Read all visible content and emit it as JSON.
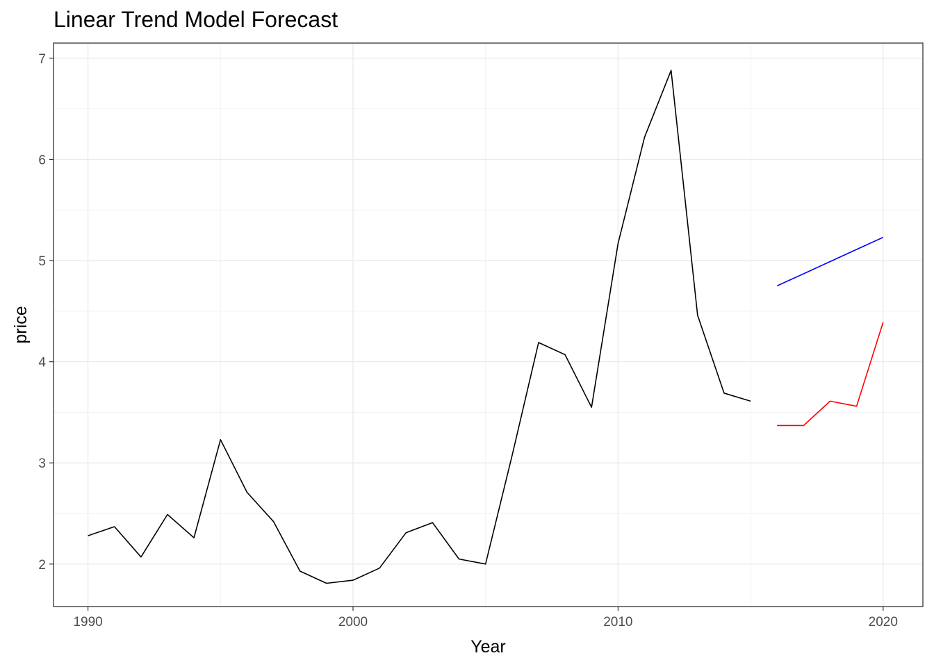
{
  "chart_data": {
    "type": "line",
    "title": "Linear Trend Model Forecast",
    "xlabel": "Year",
    "ylabel": "price",
    "xlim": [
      1988.7,
      2021.5
    ],
    "ylim": [
      1.58,
      7.15
    ],
    "x_ticks": [
      1990,
      2000,
      2010,
      2020
    ],
    "y_ticks": [
      2,
      3,
      4,
      5,
      6,
      7
    ],
    "grid": true,
    "legend": "none",
    "series": [
      {
        "color": "#000000",
        "x": [
          1990,
          1991,
          1992,
          1993,
          1994,
          1995,
          1996,
          1997,
          1998,
          1999,
          2000,
          2001,
          2002,
          2003,
          2004,
          2005,
          2006,
          2007,
          2008,
          2009,
          2010,
          2011,
          2012,
          2013,
          2014,
          2015
        ],
        "y": [
          2.28,
          2.37,
          2.07,
          2.49,
          2.26,
          3.23,
          2.71,
          2.42,
          1.93,
          1.81,
          1.84,
          1.96,
          2.31,
          2.41,
          2.05,
          2.0,
          3.07,
          4.19,
          4.07,
          3.55,
          5.17,
          6.22,
          6.88,
          4.46,
          3.69,
          3.61
        ]
      },
      {
        "color": "#0000ff",
        "x": [
          2016,
          2017,
          2018,
          2019,
          2020
        ],
        "y": [
          4.75,
          4.87,
          4.99,
          5.11,
          5.23
        ]
      },
      {
        "color": "#ff0000",
        "x": [
          2016,
          2017,
          2018,
          2019,
          2020
        ],
        "y": [
          3.37,
          3.37,
          3.61,
          3.56,
          4.39
        ]
      }
    ]
  }
}
